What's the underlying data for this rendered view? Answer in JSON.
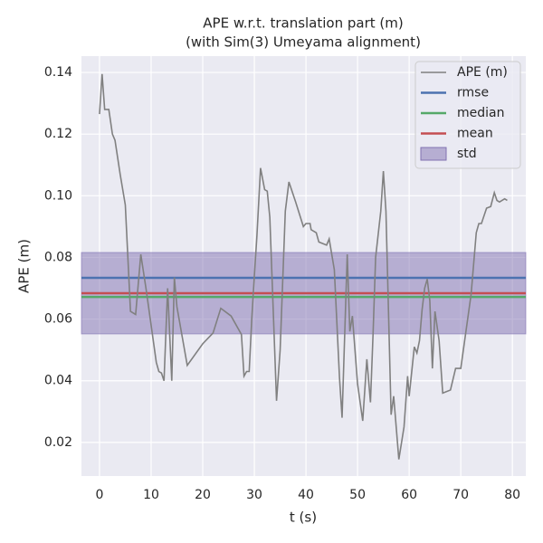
{
  "chart_data": {
    "type": "line",
    "title": "APE w.r.t. translation part (m)",
    "subtitle": "(with Sim(3) Umeyama alignment)",
    "x_label": "t (s)",
    "y_label": "APE (m)",
    "xlim": [
      -3.5,
      82.6
    ],
    "ylim": [
      0.0091,
      0.1453
    ],
    "xticks": [
      0,
      10,
      20,
      30,
      40,
      50,
      60,
      70,
      80
    ],
    "yticks": [
      0.02,
      0.04,
      0.06,
      0.08,
      0.1,
      0.12,
      0.14
    ],
    "grid": true,
    "legend": "upper right",
    "series": [
      {
        "name": "APE (m)",
        "color": "#808080",
        "x": [
          0,
          0.5,
          1,
          1.8,
          2.5,
          3,
          4,
          5,
          6,
          7,
          8,
          9,
          10,
          11,
          11.5,
          12,
          12.5,
          13.2,
          14,
          14.5,
          15,
          17,
          20,
          22,
          23.5,
          25.5,
          27.5,
          28,
          28.5,
          29,
          29.5,
          30,
          30.5,
          31.2,
          32,
          32.5,
          33,
          34.3,
          35,
          36,
          36.7,
          38,
          39.5,
          40,
          40.8,
          41,
          42,
          42.5,
          44,
          44.5,
          45.5,
          46.5,
          47,
          48,
          48.5,
          49,
          49.5,
          50,
          51,
          51.8,
          52.5,
          53,
          53.5,
          54.5,
          55,
          55.5,
          56.5,
          57,
          58,
          59,
          59.7,
          60,
          61,
          61.5,
          62,
          62.5,
          63,
          63.5,
          64,
          64.5,
          65,
          65.8,
          66.5,
          68,
          69,
          70,
          71,
          72,
          73,
          73.5,
          74,
          75,
          75.8,
          76.5,
          77,
          77.5,
          78.5,
          79
        ],
        "values": [
          0.1265,
          0.1395,
          0.128,
          0.128,
          0.12,
          0.118,
          0.107,
          0.097,
          0.0625,
          0.0615,
          0.081,
          0.07,
          0.058,
          0.046,
          0.043,
          0.0425,
          0.04,
          0.07,
          0.04,
          0.0735,
          0.064,
          0.045,
          0.052,
          0.0555,
          0.0635,
          0.061,
          0.055,
          0.0415,
          0.043,
          0.043,
          0.06,
          0.074,
          0.087,
          0.109,
          0.102,
          0.1015,
          0.093,
          0.0335,
          0.05,
          0.095,
          0.1045,
          0.098,
          0.09,
          0.091,
          0.091,
          0.089,
          0.088,
          0.085,
          0.084,
          0.086,
          0.076,
          0.041,
          0.028,
          0.081,
          0.056,
          0.061,
          0.05,
          0.039,
          0.027,
          0.047,
          0.033,
          0.055,
          0.08,
          0.095,
          0.108,
          0.095,
          0.029,
          0.035,
          0.0145,
          0.025,
          0.0415,
          0.035,
          0.051,
          0.049,
          0.053,
          0.063,
          0.07,
          0.073,
          0.066,
          0.044,
          0.0625,
          0.053,
          0.036,
          0.037,
          0.044,
          0.044,
          0.056,
          0.068,
          0.088,
          0.091,
          0.091,
          0.096,
          0.0965,
          0.101,
          0.0985,
          0.098,
          0.099,
          0.0985
        ]
      }
    ],
    "hlines": [
      {
        "name": "rmse",
        "color": "#4c72b0",
        "value": 0.0734
      },
      {
        "name": "median",
        "color": "#55a868",
        "value": 0.0672
      },
      {
        "name": "mean",
        "color": "#c44e52",
        "value": 0.0684
      }
    ],
    "bands": [
      {
        "name": "std",
        "color": "#8172b2",
        "lower": 0.0552,
        "upper": 0.0816
      }
    ]
  }
}
